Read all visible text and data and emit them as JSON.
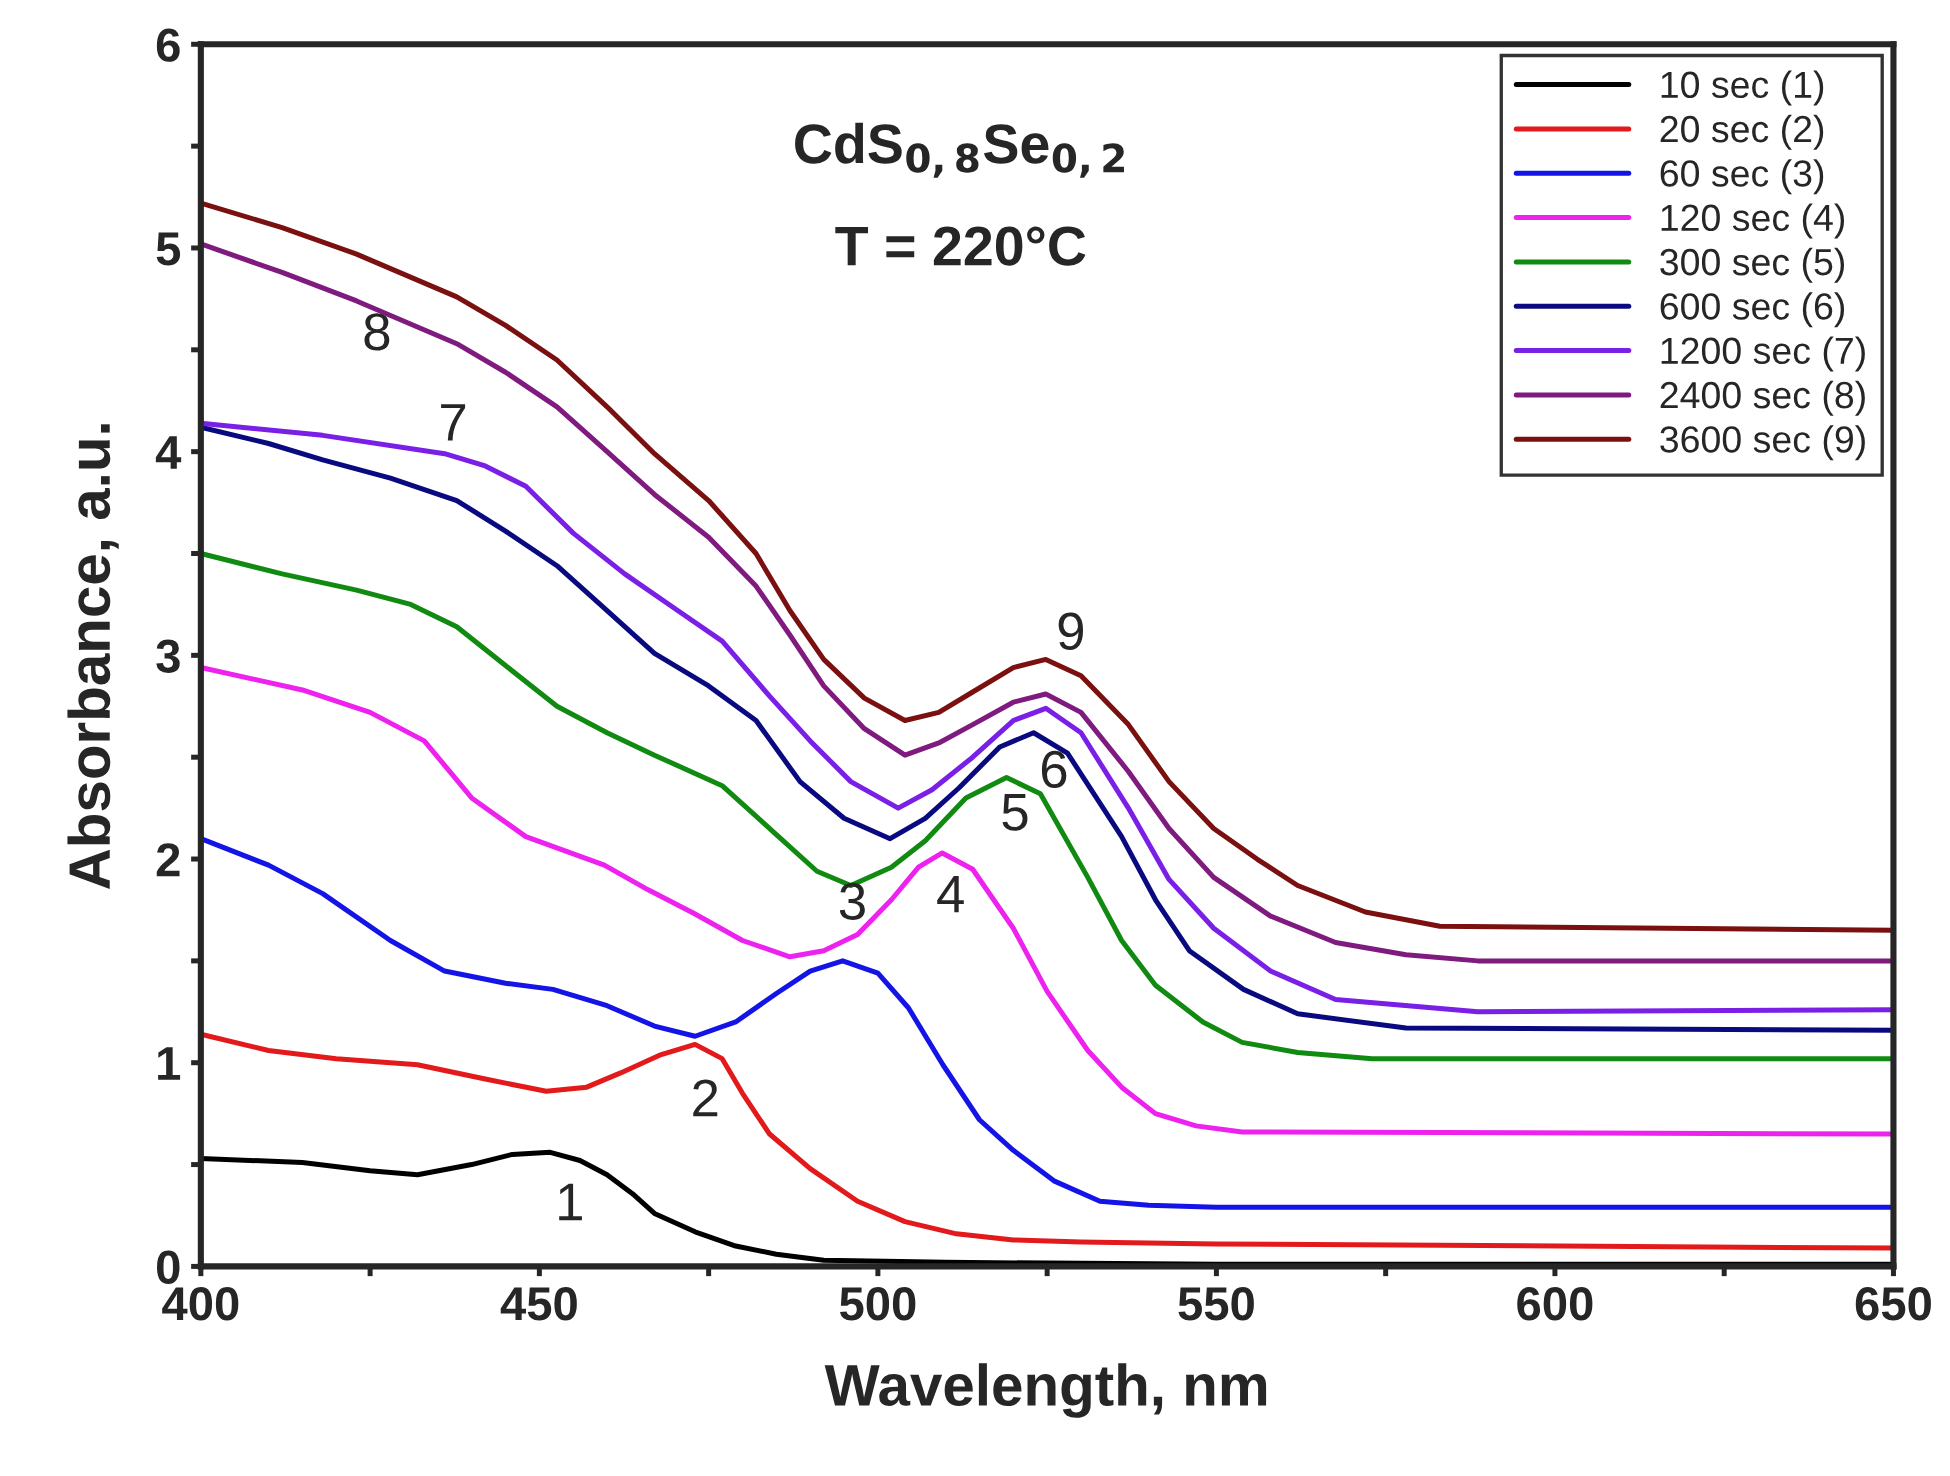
{
  "chart_data": {
    "type": "line",
    "xlabel": "Wavelength, nm",
    "ylabel": "Absorbance, a.u.",
    "annotations": [
      "CdS$_{0,8}$Se$_{0,2}$",
      "T = 220°C",
      "1",
      "2",
      "3",
      "4",
      "5",
      "6",
      "7",
      "8",
      "9"
    ],
    "xlim": [
      400,
      650
    ],
    "ylim": [
      0,
      6
    ],
    "xticks": [
      400,
      {
        "value": 425,
        "label": null
      },
      450,
      {
        "value": 475,
        "label": null
      },
      500,
      {
        "value": 525,
        "label": null
      },
      550,
      {
        "value": 575,
        "label": null
      },
      600,
      {
        "value": 625,
        "label": null
      },
      650
    ],
    "yticks": [
      0,
      {
        "value": 0.5,
        "label": null
      },
      1,
      {
        "value": 1.5,
        "label": null
      },
      2,
      {
        "value": 2.5,
        "label": null
      },
      3,
      {
        "value": 3.5,
        "label": null
      },
      4,
      {
        "value": 4.5,
        "label": null
      },
      5,
      {
        "value": 5.5,
        "label": null
      },
      6
    ],
    "grid": false,
    "legend": "top right",
    "marker": "none",
    "line_style": "solid",
    "series": [
      {
        "name": "10 sec (1)",
        "color": "#000000",
        "x": [
          400,
          415,
          425,
          432,
          440,
          446,
          451.6,
          456,
          460,
          464,
          467,
          473,
          479,
          485,
          492,
          510,
          550,
          650
        ],
        "values": [
          0.53,
          0.51,
          0.47,
          0.45,
          0.5,
          0.55,
          0.56,
          0.52,
          0.45,
          0.35,
          0.26,
          0.17,
          0.1,
          0.06,
          0.03,
          0.02,
          0.01,
          0.01
        ]
      },
      {
        "name": "20 sec (2)",
        "color": "#e31a1c",
        "x": [
          400,
          410,
          420,
          432,
          442,
          451,
          457,
          462,
          468,
          473,
          477,
          480,
          484,
          490,
          497,
          504,
          511.6,
          520,
          530,
          550,
          650
        ],
        "values": [
          1.14,
          1.06,
          1.02,
          0.99,
          0.92,
          0.86,
          0.88,
          0.95,
          1.04,
          1.09,
          1.02,
          0.85,
          0.65,
          0.48,
          0.32,
          0.22,
          0.16,
          0.13,
          0.12,
          0.11,
          0.09
        ]
      },
      {
        "name": "60 sec (3)",
        "color": "#1414e6",
        "x": [
          400,
          410,
          418,
          428,
          436,
          445,
          452,
          460,
          467,
          473,
          479,
          485,
          490,
          494.8,
          500,
          504.5,
          509.6,
          515,
          520,
          526,
          532.8,
          540,
          550,
          650
        ],
        "values": [
          2.1,
          1.97,
          1.83,
          1.6,
          1.45,
          1.39,
          1.36,
          1.28,
          1.18,
          1.13,
          1.2,
          1.34,
          1.45,
          1.5,
          1.44,
          1.27,
          0.99,
          0.72,
          0.57,
          0.42,
          0.32,
          0.3,
          0.29,
          0.29
        ]
      },
      {
        "name": "120 sec (4)",
        "color": "#ee22ee",
        "x": [
          400,
          415,
          425,
          433,
          440,
          448,
          459.6,
          466,
          473,
          480,
          487,
          492,
          497,
          502,
          506,
          509.5,
          514,
          520,
          525,
          531,
          536,
          541,
          547,
          553.8,
          650
        ],
        "values": [
          2.94,
          2.83,
          2.72,
          2.58,
          2.3,
          2.11,
          1.97,
          1.85,
          1.73,
          1.6,
          1.52,
          1.55,
          1.63,
          1.8,
          1.96,
          2.03,
          1.95,
          1.66,
          1.35,
          1.06,
          0.88,
          0.75,
          0.69,
          0.66,
          0.65
        ]
      },
      {
        "name": "300 sec (5)",
        "color": "#118a11",
        "x": [
          400,
          412,
          423,
          431,
          437.8,
          445,
          452.6,
          460,
          467,
          477,
          485,
          491,
          496,
          502,
          507,
          513,
          519,
          524,
          531,
          536,
          541,
          548,
          553.8,
          562,
          573,
          650
        ],
        "values": [
          3.5,
          3.4,
          3.32,
          3.25,
          3.14,
          2.95,
          2.75,
          2.62,
          2.51,
          2.36,
          2.12,
          1.94,
          1.87,
          1.96,
          2.09,
          2.3,
          2.4,
          2.32,
          1.91,
          1.6,
          1.38,
          1.2,
          1.1,
          1.05,
          1.02,
          1.02
        ]
      },
      {
        "name": "600 sec (6)",
        "color": "#0a0a80",
        "x": [
          400,
          410,
          418,
          428,
          437.8,
          445,
          452.6,
          460,
          467,
          475,
          482,
          488.5,
          495,
          501.8,
          507,
          512,
          518,
          523,
          528,
          536,
          541,
          546,
          554,
          562,
          578,
          650
        ],
        "values": [
          4.12,
          4.04,
          3.96,
          3.87,
          3.76,
          3.61,
          3.44,
          3.22,
          3.01,
          2.85,
          2.68,
          2.38,
          2.2,
          2.1,
          2.2,
          2.35,
          2.55,
          2.62,
          2.52,
          2.11,
          1.8,
          1.55,
          1.36,
          1.24,
          1.17,
          1.16
        ]
      },
      {
        "name": "1200 sec (7)",
        "color": "#7a1fe6",
        "x": [
          400,
          418,
          436,
          442,
          448,
          455,
          462.6,
          470,
          477,
          484,
          490,
          496,
          503,
          508,
          514,
          520,
          524.8,
          530,
          537,
          543,
          549.6,
          558,
          567.6,
          588.6,
          650
        ],
        "values": [
          4.14,
          4.08,
          3.99,
          3.93,
          3.83,
          3.6,
          3.4,
          3.23,
          3.07,
          2.8,
          2.58,
          2.38,
          2.25,
          2.34,
          2.5,
          2.68,
          2.74,
          2.62,
          2.25,
          1.9,
          1.66,
          1.45,
          1.31,
          1.25,
          1.26
        ]
      },
      {
        "name": "2400 sec (8)",
        "color": "#7f1a7f",
        "x": [
          400,
          412,
          423,
          437.8,
          445,
          452.6,
          460,
          467,
          475,
          482,
          487,
          492,
          498,
          504,
          509,
          514,
          520,
          524.8,
          530,
          537,
          543,
          549.6,
          558,
          567.6,
          578,
          588.6,
          650
        ],
        "values": [
          5.02,
          4.88,
          4.74,
          4.53,
          4.39,
          4.22,
          4.0,
          3.79,
          3.58,
          3.34,
          3.1,
          2.85,
          2.64,
          2.51,
          2.57,
          2.66,
          2.77,
          2.81,
          2.72,
          2.43,
          2.15,
          1.91,
          1.72,
          1.59,
          1.53,
          1.5,
          1.5
        ]
      },
      {
        "name": "3600 sec (9)",
        "color": "#7a1010",
        "x": [
          400,
          412,
          423,
          437.8,
          445,
          452.6,
          460,
          467,
          475,
          482,
          487,
          492,
          498,
          504,
          509,
          514,
          520,
          524.8,
          530,
          537,
          543,
          549.6,
          556,
          562,
          572,
          583,
          650
        ],
        "values": [
          5.22,
          5.1,
          4.97,
          4.76,
          4.62,
          4.45,
          4.22,
          3.99,
          3.76,
          3.5,
          3.22,
          2.98,
          2.79,
          2.68,
          2.72,
          2.82,
          2.94,
          2.98,
          2.9,
          2.66,
          2.38,
          2.15,
          2.0,
          1.87,
          1.74,
          1.67,
          1.65
        ]
      }
    ]
  }
}
